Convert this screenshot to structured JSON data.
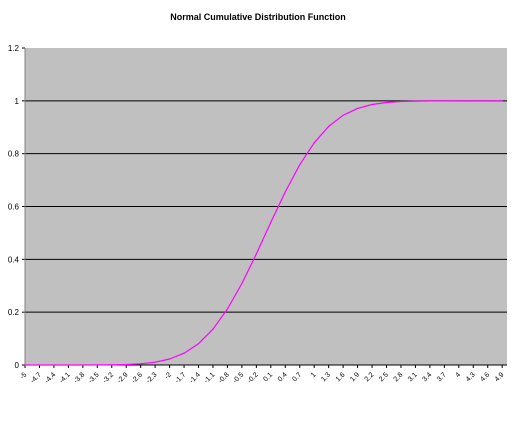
{
  "chart_data": {
    "type": "line",
    "title": "Normal Cumulative Distribution Function",
    "xlabel": "",
    "ylabel": "",
    "ylim": [
      0,
      1.2
    ],
    "xlim": [
      -5,
      5
    ],
    "y_ticks": [
      "0",
      "0.2",
      "0.4",
      "0.6",
      "0.8",
      "1",
      "1.2"
    ],
    "x_ticks": [
      "-5",
      "-4.7",
      "-4.4",
      "-4.1",
      "-3.8",
      "-3.5",
      "-3.2",
      "-2.9",
      "-2.6",
      "-2.3",
      "-2",
      "-1.7",
      "-1.4",
      "-1.1",
      "-0.8",
      "-0.5",
      "-0.2",
      "0.1",
      "0.4",
      "0.7",
      "1",
      "1.3",
      "1.6",
      "1.9",
      "2.2",
      "2.5",
      "2.8",
      "3.1",
      "3.4",
      "3.7",
      "4",
      "4.3",
      "4.6",
      "4.9"
    ],
    "grid": true,
    "legend": "none",
    "colors": {
      "plot_background": "#C0C0C0",
      "line": "#FF00FF",
      "gridline": "#000000"
    },
    "series": [
      {
        "x": [
          -5,
          -4.7,
          -4.4,
          -4.1,
          -3.8,
          -3.5,
          -3.2,
          -2.9,
          -2.6,
          -2.3,
          -2,
          -1.7,
          -1.4,
          -1.1,
          -0.8,
          -0.5,
          -0.2,
          0.1,
          0.4,
          0.7,
          1,
          1.3,
          1.6,
          1.9,
          2.2,
          2.5,
          2.8,
          3.1,
          3.4,
          3.7,
          4,
          4.3,
          4.6,
          4.9
        ],
        "values": [
          0,
          0,
          0,
          0,
          0.0001,
          0.0002,
          0.0007,
          0.0019,
          0.0047,
          0.0107,
          0.0228,
          0.0446,
          0.0808,
          0.1357,
          0.2119,
          0.3085,
          0.4207,
          0.5398,
          0.6554,
          0.758,
          0.8413,
          0.9032,
          0.9452,
          0.9713,
          0.9861,
          0.9938,
          0.9974,
          0.999,
          0.9997,
          0.9999,
          1,
          1,
          1,
          1
        ]
      }
    ]
  }
}
